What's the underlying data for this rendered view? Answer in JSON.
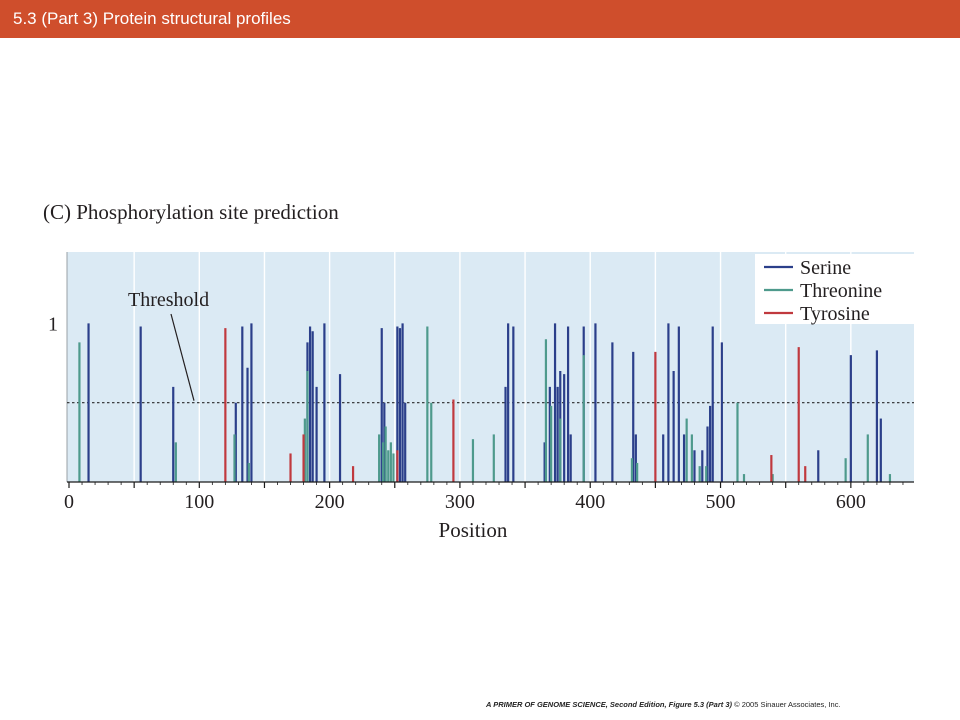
{
  "header": {
    "title": "5.3 (Part 3)  Protein structural profiles"
  },
  "figure": {
    "panel_title": "(C)  Phosphorylation site prediction"
  },
  "footer": {
    "citation": "A PRIMER OF GENOME SCIENCE, Second Edition, Figure 5.3 (Part 3)",
    "copyright": "© 2005 Sinauer Associates, Inc."
  },
  "chart_data": {
    "type": "bar",
    "title": "(C)  Phosphorylation site prediction",
    "xlabel": "Position",
    "ylabel": "",
    "xlim": [
      0,
      650
    ],
    "ylim": [
      0,
      1.45
    ],
    "x_ticks": [
      0,
      100,
      200,
      300,
      400,
      500,
      600
    ],
    "y_ticks": [
      1
    ],
    "grid": true,
    "legend_position": "top-right",
    "threshold": {
      "value": 0.5,
      "label": "Threshold"
    },
    "series": [
      {
        "name": "Serine",
        "color": "#2b3f8a",
        "points": [
          [
            15,
            1.0
          ],
          [
            55,
            0.98
          ],
          [
            80,
            0.6
          ],
          [
            128,
            0.5
          ],
          [
            133,
            0.98
          ],
          [
            137,
            0.72
          ],
          [
            140,
            1.0
          ],
          [
            183,
            0.88
          ],
          [
            185,
            0.98
          ],
          [
            187,
            0.95
          ],
          [
            190,
            0.6
          ],
          [
            196,
            1.0
          ],
          [
            208,
            0.68
          ],
          [
            240,
            0.97
          ],
          [
            242,
            0.5
          ],
          [
            252,
            0.98
          ],
          [
            254,
            0.97
          ],
          [
            256,
            1.0
          ],
          [
            258,
            0.5
          ],
          [
            335,
            0.6
          ],
          [
            337,
            1.0
          ],
          [
            341,
            0.98
          ],
          [
            365,
            0.25
          ],
          [
            369,
            0.6
          ],
          [
            373,
            1.0
          ],
          [
            375,
            0.6
          ],
          [
            377,
            0.7
          ],
          [
            380,
            0.68
          ],
          [
            383,
            0.98
          ],
          [
            385,
            0.3
          ],
          [
            395,
            0.98
          ],
          [
            404,
            1.0
          ],
          [
            417,
            0.88
          ],
          [
            433,
            0.82
          ],
          [
            435,
            0.3
          ],
          [
            456,
            0.3
          ],
          [
            460,
            1.0
          ],
          [
            464,
            0.7
          ],
          [
            468,
            0.98
          ],
          [
            472,
            0.3
          ],
          [
            480,
            0.2
          ],
          [
            486,
            0.2
          ],
          [
            490,
            0.35
          ],
          [
            492,
            0.48
          ],
          [
            494,
            0.98
          ],
          [
            501,
            0.88
          ],
          [
            575,
            0.2
          ],
          [
            600,
            0.8
          ],
          [
            620,
            0.83
          ],
          [
            623,
            0.4
          ]
        ]
      },
      {
        "name": "Threonine",
        "color": "#4e9a8c",
        "points": [
          [
            8,
            0.88
          ],
          [
            82,
            0.25
          ],
          [
            127,
            0.3
          ],
          [
            138,
            0.12
          ],
          [
            181,
            0.4
          ],
          [
            183,
            0.7
          ],
          [
            238,
            0.3
          ],
          [
            241,
            0.25
          ],
          [
            243,
            0.35
          ],
          [
            245,
            0.2
          ],
          [
            247,
            0.25
          ],
          [
            249,
            0.18
          ],
          [
            275,
            0.98
          ],
          [
            278,
            0.5
          ],
          [
            310,
            0.27
          ],
          [
            326,
            0.3
          ],
          [
            366,
            0.9
          ],
          [
            370,
            0.48
          ],
          [
            377,
            0.4
          ],
          [
            395,
            0.8
          ],
          [
            432,
            0.15
          ],
          [
            436,
            0.12
          ],
          [
            474,
            0.4
          ],
          [
            478,
            0.3
          ],
          [
            484,
            0.1
          ],
          [
            489,
            0.1
          ],
          [
            513,
            0.5
          ],
          [
            518,
            0.05
          ],
          [
            540,
            0.05
          ],
          [
            596,
            0.15
          ],
          [
            613,
            0.3
          ],
          [
            630,
            0.05
          ]
        ]
      },
      {
        "name": "Tyrosine",
        "color": "#c0393e",
        "points": [
          [
            120,
            0.97
          ],
          [
            170,
            0.18
          ],
          [
            180,
            0.3
          ],
          [
            218,
            0.1
          ],
          [
            252,
            0.2
          ],
          [
            295,
            0.52
          ],
          [
            450,
            0.82
          ],
          [
            539,
            0.17
          ],
          [
            560,
            0.85
          ],
          [
            565,
            0.1
          ]
        ]
      }
    ]
  }
}
